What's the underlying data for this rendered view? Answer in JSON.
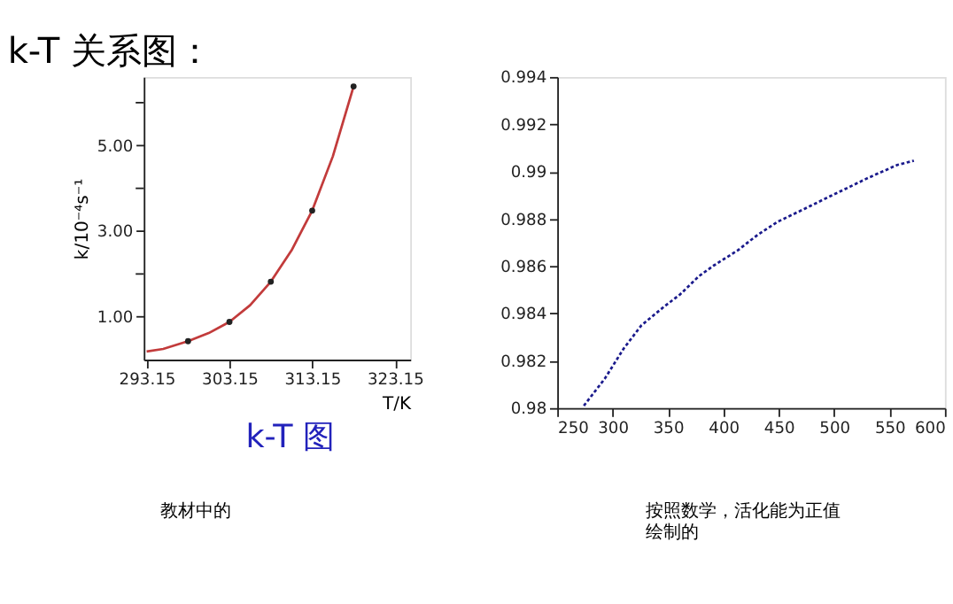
{
  "chart_data": [
    {
      "type": "line",
      "title": "k-T 关系图：",
      "xlabel": "T/K",
      "ylabel": "k/10⁻⁴s⁻¹",
      "xlim": [
        292.8,
        325
      ],
      "xticks": [
        293.15,
        303.15,
        313.15,
        323.15
      ],
      "ylim": [
        0,
        6.6
      ],
      "yticks": [
        {
          "value": 1,
          "label": "1.00"
        },
        {
          "value": 2,
          "label": null
        },
        {
          "value": 3,
          "label": "3.00"
        },
        {
          "value": 4,
          "label": null
        },
        {
          "value": 5,
          "label": "5.00"
        },
        {
          "value": 6,
          "label": null
        }
      ],
      "grid": false,
      "series": [
        {
          "color": "#c23b3b",
          "line_style": "solid",
          "x": [
            293.15,
            295.15,
            298.15,
            300.65,
            303.15,
            305.65,
            308.15,
            310.65,
            313.15,
            315.65,
            318.15
          ],
          "values": [
            0.19,
            0.25,
            0.43,
            0.62,
            0.88,
            1.27,
            1.82,
            2.55,
            3.48,
            4.75,
            6.38
          ]
        },
        {
          "type": "scatter",
          "color": "#222222",
          "marker": "circle",
          "x": [
            298.15,
            303.15,
            308.15,
            313.15,
            318.15
          ],
          "values": [
            0.43,
            0.88,
            1.82,
            3.48,
            6.38
          ]
        }
      ],
      "annotations": [
        "k-T 图",
        "教材中的"
      ]
    },
    {
      "type": "line",
      "xlim": [
        250,
        600
      ],
      "xticks": [
        250,
        300,
        350,
        400,
        450,
        500,
        550,
        600
      ],
      "ylim": [
        0.98,
        0.994
      ],
      "yticks": [
        0.98,
        0.982,
        0.984,
        0.986,
        0.988,
        0.99,
        0.992,
        0.994
      ],
      "grid": false,
      "series": [
        {
          "color": "#1a1a8c",
          "line_style": "dotted",
          "x": [
            274,
            293,
            310,
            326,
            347,
            361,
            378,
            391,
            413,
            431,
            449,
            473,
            500,
            531,
            557,
            572
          ],
          "values": [
            0.9801,
            0.98125,
            0.98252,
            0.9835,
            0.98431,
            0.98481,
            0.98558,
            0.98602,
            0.98667,
            0.98733,
            0.98788,
            0.98842,
            0.98904,
            0.98974,
            0.99028,
            0.99046
          ]
        }
      ],
      "annotations": [
        "按照数学，活化能为正值绘制的"
      ]
    }
  ]
}
